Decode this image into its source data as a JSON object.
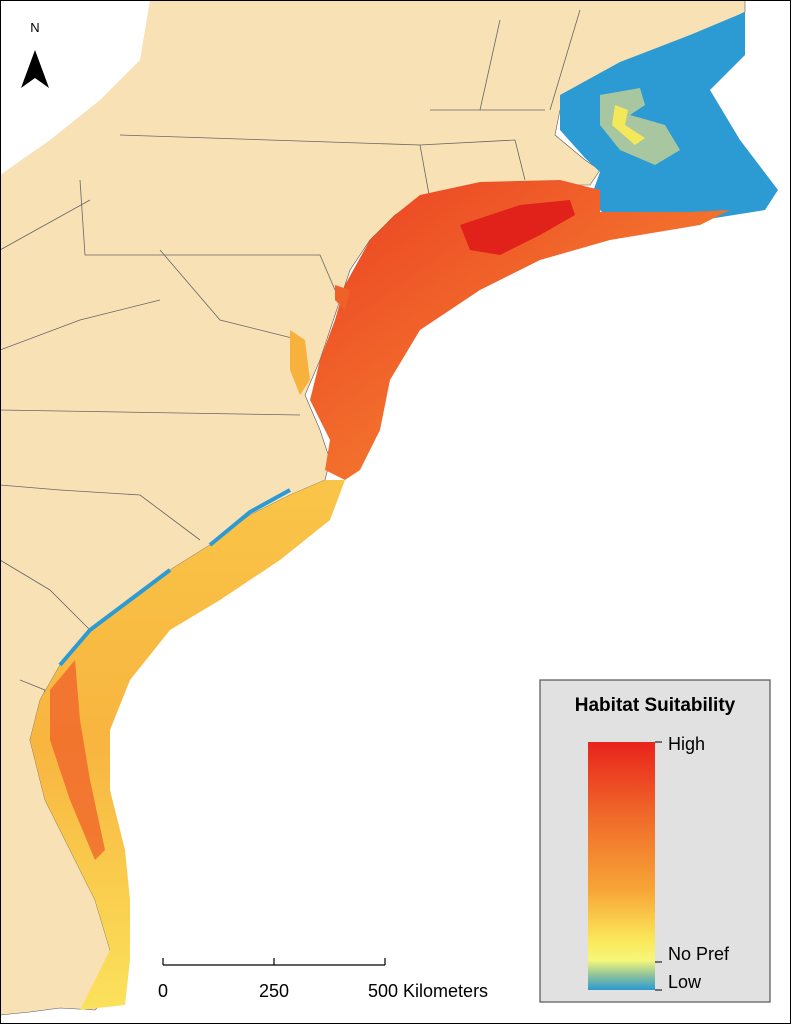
{
  "north_arrow": {
    "label": "N"
  },
  "legend": {
    "title": "Habitat Suitability",
    "labels": [
      "High",
      "No Pref",
      "Low"
    ]
  },
  "scale_bar": {
    "labels": [
      "0",
      "250",
      "500 Kilometers"
    ]
  }
}
